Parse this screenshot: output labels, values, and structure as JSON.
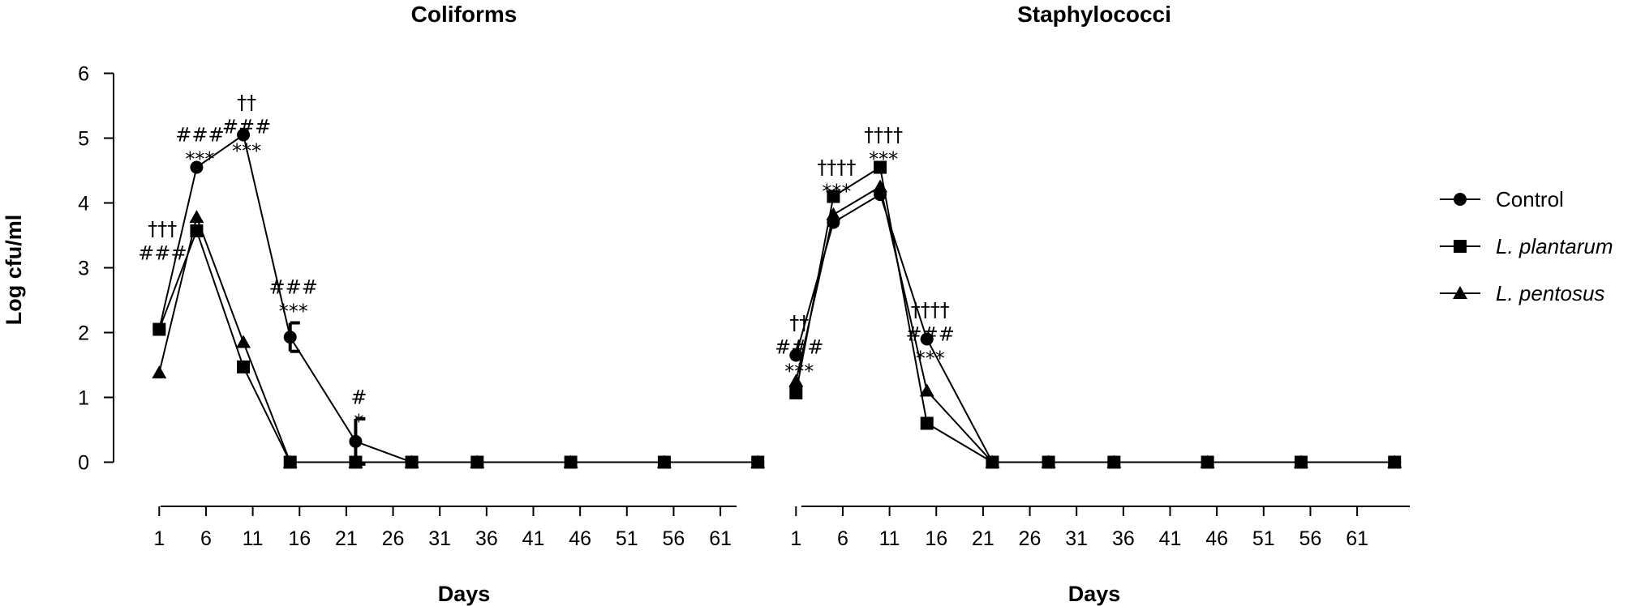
{
  "chart_data": [
    {
      "type": "line",
      "title": "Coliforms",
      "xlabel": "Days",
      "ylabel": "Log cfu/ml",
      "ylim": [
        0,
        6
      ],
      "xlim": [
        -1,
        66
      ],
      "yticks": [
        0,
        1,
        2,
        3,
        4,
        5,
        6
      ],
      "xticks": [
        1,
        6,
        11,
        16,
        21,
        26,
        31,
        36,
        41,
        46,
        51,
        56,
        61
      ],
      "series": [
        {
          "name": "Control",
          "marker": "circle",
          "x": [
            1,
            5,
            10,
            15,
            22,
            28,
            35,
            45,
            55,
            65
          ],
          "y": [
            2.05,
            4.55,
            5.05,
            1.93,
            0.32,
            0,
            0,
            0,
            0,
            0
          ],
          "err": [
            0,
            0,
            0,
            0.22,
            0.35,
            0,
            0,
            0,
            0,
            0
          ]
        },
        {
          "name": "L. plantarum",
          "marker": "square",
          "x": [
            1,
            5,
            10,
            15,
            22,
            28,
            35,
            45,
            55,
            65
          ],
          "y": [
            2.05,
            3.57,
            1.47,
            0,
            0,
            0,
            0,
            0,
            0,
            0
          ]
        },
        {
          "name": "L. pentosus",
          "marker": "triangle",
          "x": [
            1,
            5,
            10,
            15,
            22,
            28,
            35,
            45,
            55,
            65
          ],
          "y": [
            1.38,
            3.78,
            1.85,
            0,
            0,
            0,
            0,
            0,
            0,
            0
          ]
        }
      ],
      "annotations": [
        {
          "x": 1,
          "lines": [
            "†††",
            "###"
          ],
          "y_anchor": 3.5
        },
        {
          "x": 5,
          "lines": [
            "###",
            "***"
          ],
          "y_anchor": 4.95
        },
        {
          "x": 10,
          "lines": [
            "††",
            "###",
            "***"
          ],
          "y_anchor": 5.45
        },
        {
          "x": 15,
          "lines": [
            "###",
            "***"
          ],
          "y_anchor": 2.6
        },
        {
          "x": 22,
          "lines": [
            "#",
            "*"
          ],
          "y_anchor": 0.9
        }
      ]
    },
    {
      "type": "line",
      "title": "Staphylococci",
      "xlabel": "Days",
      "ylabel": "",
      "ylim": [
        0,
        6
      ],
      "xlim": [
        -1,
        66
      ],
      "xticks": [
        1,
        6,
        11,
        16,
        21,
        26,
        31,
        36,
        41,
        46,
        51,
        56,
        61
      ],
      "series": [
        {
          "name": "Control",
          "marker": "circle",
          "x": [
            1,
            5,
            10,
            15,
            22,
            28,
            35,
            45,
            55,
            65
          ],
          "y": [
            1.65,
            3.7,
            4.13,
            1.9,
            0,
            0,
            0,
            0,
            0,
            0
          ]
        },
        {
          "name": "L. plantarum",
          "marker": "square",
          "x": [
            1,
            5,
            10,
            15,
            22,
            28,
            35,
            45,
            55,
            65
          ],
          "y": [
            1.07,
            4.1,
            4.55,
            0.6,
            0,
            0,
            0,
            0,
            0,
            0
          ]
        },
        {
          "name": "L. pentosus",
          "marker": "triangle",
          "x": [
            1,
            5,
            10,
            15,
            22,
            28,
            35,
            45,
            55,
            65
          ],
          "y": [
            1.25,
            3.82,
            4.25,
            1.1,
            0,
            0,
            0,
            0,
            0,
            0
          ]
        }
      ],
      "annotations": [
        {
          "x": 1,
          "lines": [
            "††",
            "###",
            "***"
          ],
          "y_anchor": 2.05
        },
        {
          "x": 5,
          "lines": [
            "††††",
            "***"
          ],
          "y_anchor": 4.45
        },
        {
          "x": 10,
          "lines": [
            "††††",
            "***"
          ],
          "y_anchor": 4.95
        },
        {
          "x": 15,
          "lines": [
            "††††",
            "###",
            "***"
          ],
          "y_anchor": 2.25
        }
      ]
    }
  ],
  "legend": {
    "placement": "right",
    "items": [
      {
        "label": "Control",
        "marker": "circle"
      },
      {
        "label": "L. plantarum",
        "marker": "square"
      },
      {
        "label": "L. pentosus",
        "marker": "triangle"
      }
    ]
  }
}
